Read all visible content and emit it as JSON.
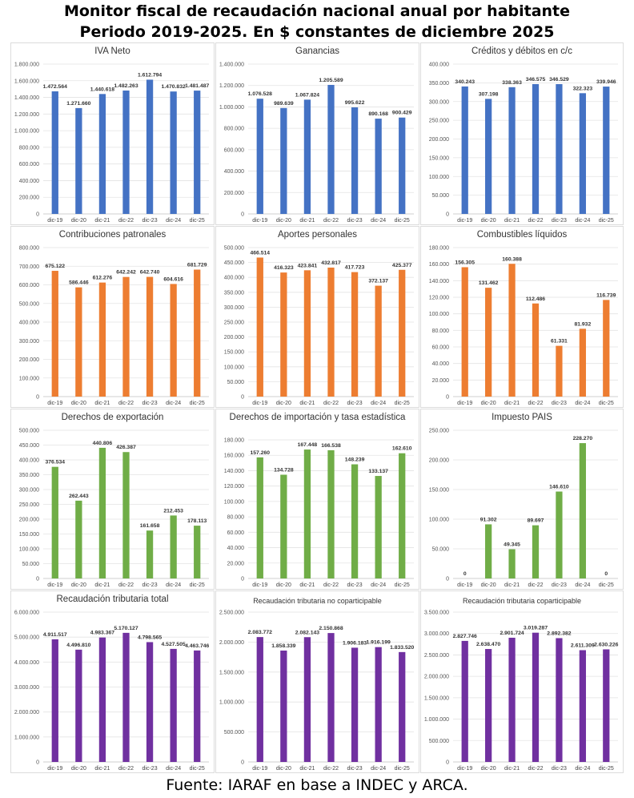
{
  "header": {
    "title_line1": "Monitor fiscal de recaudación nacional anual por habitante",
    "title_line2": "Periodo 2019-2025. En $ constantes de diciembre 2025"
  },
  "footer": {
    "source": "Fuente: IARAF en base a INDEC y ARCA."
  },
  "colors": {
    "blue": "#4472C4",
    "orange": "#ED7D31",
    "green": "#70AD47",
    "purple": "#7030A0"
  },
  "chart_data": [
    {
      "id": "iva",
      "type": "bar",
      "title": "IVA Neto",
      "color": "blue",
      "categories": [
        "dic-19",
        "dic-20",
        "dic-21",
        "dic-22",
        "dic-23",
        "dic-24",
        "dic-25"
      ],
      "values": [
        1472564,
        1271660,
        1440618,
        1482263,
        1612794,
        1470832,
        1481487
      ],
      "labels": [
        "1.472.564",
        "1.271.660",
        "1.440.618",
        "1.482.263",
        "1.612.794",
        "1.470.832",
        "1.481.487"
      ],
      "ylim": [
        0,
        1800000
      ],
      "yticks": [
        "0",
        "200.000",
        "400.000",
        "600.000",
        "800.000",
        "1.000.000",
        "1.200.000",
        "1.400.000",
        "1.600.000",
        "1.800.000"
      ]
    },
    {
      "id": "ganancias",
      "type": "bar",
      "title": "Ganancias",
      "color": "blue",
      "categories": [
        "dic-19",
        "dic-20",
        "dic-21",
        "dic-22",
        "dic-23",
        "dic-24",
        "dic-25"
      ],
      "values": [
        1076528,
        989639,
        1067824,
        1205589,
        995622,
        890168,
        900429
      ],
      "labels": [
        "1.076.528",
        "989.639",
        "1.067.824",
        "1.205.589",
        "995.622",
        "890.168",
        "900.429"
      ],
      "ylim": [
        0,
        1400000
      ],
      "yticks": [
        "0",
        "200.000",
        "400.000",
        "600.000",
        "800.000",
        "1.000.000",
        "1.200.000",
        "1.400.000"
      ]
    },
    {
      "id": "creditos",
      "type": "bar",
      "title": "Créditos y débitos en c/c",
      "color": "blue",
      "categories": [
        "dic-19",
        "dic-20",
        "dic-21",
        "dic-22",
        "dic-23",
        "dic-24",
        "dic-25"
      ],
      "values": [
        340243,
        307198,
        338363,
        346575,
        346529,
        322323,
        339946
      ],
      "labels": [
        "340.243",
        "307.198",
        "338.363",
        "346.575",
        "346.529",
        "322.323",
        "339.946"
      ],
      "ylim": [
        0,
        400000
      ],
      "yticks": [
        "0",
        "50.000",
        "100.000",
        "150.000",
        "200.000",
        "250.000",
        "300.000",
        "350.000",
        "400.000"
      ]
    },
    {
      "id": "contribuciones",
      "type": "bar",
      "title": "Contribuciones patronales",
      "color": "orange",
      "categories": [
        "dic-19",
        "dic-20",
        "dic-21",
        "dic-22",
        "dic-23",
        "dic-24",
        "dic-25"
      ],
      "values": [
        675122,
        586446,
        612276,
        642242,
        642740,
        604616,
        681729
      ],
      "labels": [
        "675.122",
        "586.446",
        "612.276",
        "642.242",
        "642.740",
        "604.616",
        "681.729"
      ],
      "ylim": [
        0,
        800000
      ],
      "yticks": [
        "0",
        "100.000",
        "200.000",
        "300.000",
        "400.000",
        "500.000",
        "600.000",
        "700.000",
        "800.000"
      ]
    },
    {
      "id": "aportes",
      "type": "bar",
      "title": "Aportes personales",
      "color": "orange",
      "categories": [
        "dic-19",
        "dic-20",
        "dic-21",
        "dic-22",
        "dic-23",
        "dic-24",
        "dic-25"
      ],
      "values": [
        466514,
        416323,
        423841,
        432817,
        417723,
        372137,
        425377
      ],
      "labels": [
        "466.514",
        "416.323",
        "423.841",
        "432.817",
        "417.723",
        "372.137",
        "425.377"
      ],
      "ylim": [
        0,
        500000
      ],
      "yticks": [
        "0",
        "50.000",
        "100.000",
        "150.000",
        "200.000",
        "250.000",
        "300.000",
        "350.000",
        "400.000",
        "450.000",
        "500.000"
      ]
    },
    {
      "id": "combustibles",
      "type": "bar",
      "title": "Combustibles líquidos",
      "color": "orange",
      "categories": [
        "dic-19",
        "dic-20",
        "dic-21",
        "dic-22",
        "dic-23",
        "dic-24",
        "dic-25"
      ],
      "values": [
        156305,
        131462,
        160388,
        112486,
        61331,
        81932,
        116739
      ],
      "labels": [
        "156.305",
        "131.462",
        "160.388",
        "112.486",
        "61.331",
        "81.932",
        "116.739"
      ],
      "ylim": [
        0,
        180000
      ],
      "yticks": [
        "0",
        "20.000",
        "40.000",
        "60.000",
        "80.000",
        "100.000",
        "120.000",
        "140.000",
        "160.000",
        "180.000"
      ]
    },
    {
      "id": "exportacion",
      "type": "bar",
      "title": "Derechos de exportación",
      "color": "green",
      "categories": [
        "dic-19",
        "dic-20",
        "dic-21",
        "dic-22",
        "dic-23",
        "dic-24",
        "dic-25"
      ],
      "values": [
        376534,
        262443,
        440806,
        426387,
        161658,
        212453,
        178113
      ],
      "labels": [
        "376.534",
        "262.443",
        "440.806",
        "426.387",
        "161.658",
        "212.453",
        "178.113"
      ],
      "ylim": [
        0,
        500000
      ],
      "yticks": [
        "0",
        "50.000",
        "100.000",
        "150.000",
        "200.000",
        "250.000",
        "300.000",
        "350.000",
        "400.000",
        "450.000",
        "500.000"
      ]
    },
    {
      "id": "importacion",
      "type": "bar",
      "title": "Derechos de importación y tasa estadística",
      "color": "green",
      "categories": [
        "dic-19",
        "dic-20",
        "dic-21",
        "dic-22",
        "dic-23",
        "dic-24",
        "dic-25"
      ],
      "values": [
        157260,
        134728,
        167448,
        166538,
        148239,
        133137,
        162610
      ],
      "labels": [
        "157.260",
        "134.728",
        "167.448",
        "166.538",
        "148.239",
        "133.137",
        "162.610"
      ],
      "ylim": [
        0,
        180000
      ],
      "yticks": [
        "0",
        "20.000",
        "40.000",
        "60.000",
        "80.000",
        "100.000",
        "120.000",
        "140.000",
        "160.000",
        "180.000"
      ]
    },
    {
      "id": "pais",
      "type": "bar",
      "title": "Impuesto PAIS",
      "color": "green",
      "categories": [
        "dic-19",
        "dic-20",
        "dic-21",
        "dic-22",
        "dic-23",
        "dic-24",
        "dic-25"
      ],
      "values": [
        0,
        91302,
        49345,
        89697,
        146610,
        228270,
        0
      ],
      "labels": [
        "0",
        "91.302",
        "49.345",
        "89.697",
        "146.610",
        "228.270",
        "0"
      ],
      "ylim": [
        0,
        250000
      ],
      "yticks": [
        "0",
        "50.000",
        "100.000",
        "150.000",
        "200.000",
        "250.000"
      ]
    },
    {
      "id": "total",
      "type": "bar",
      "title": "Recaudación tributaria total",
      "color": "purple",
      "categories": [
        "dic-19",
        "dic-20",
        "dic-21",
        "dic-22",
        "dic-23",
        "dic-24",
        "dic-25"
      ],
      "values": [
        4911517,
        4496810,
        4983367,
        5170127,
        4798565,
        4527505,
        4463746
      ],
      "labels": [
        "4.911.517",
        "4.496.810",
        "4.983.367",
        "5.170.127",
        "4.798.565",
        "4.527.505",
        "4.463.746"
      ],
      "ylim": [
        0,
        6000000
      ],
      "yticks": [
        "0",
        "1.000.000",
        "2.000.000",
        "3.000.000",
        "4.000.000",
        "5.000.000",
        "6.000.000"
      ]
    },
    {
      "id": "nocopart",
      "type": "bar",
      "title": "Recaudación tributaria no coparticipable",
      "color": "purple",
      "categories": [
        "dic-19",
        "dic-20",
        "dic-21",
        "dic-22",
        "dic-23",
        "dic-24",
        "dic-25"
      ],
      "values": [
        2083772,
        1858339,
        2082143,
        2150868,
        1906183,
        1916199,
        1833520
      ],
      "labels": [
        "2.083.772",
        "1.858.339",
        "2.082.143",
        "2.150.868",
        "1.906.183",
        "1.916.199",
        "1.833.520"
      ],
      "ylim": [
        0,
        2500000
      ],
      "yticks": [
        "0",
        "500.000",
        "1.000.000",
        "1.500.000",
        "2.000.000",
        "2.500.000"
      ]
    },
    {
      "id": "copart",
      "type": "bar",
      "title": "Recaudación tributaria coparticipable",
      "color": "purple",
      "categories": [
        "dic-19",
        "dic-20",
        "dic-21",
        "dic-22",
        "dic-23",
        "dic-24",
        "dic-25"
      ],
      "values": [
        2827746,
        2638470,
        2901724,
        3019287,
        2892382,
        2611309,
        2630226
      ],
      "labels": [
        "2.827.746",
        "2.638.470",
        "2.901.724",
        "3.019.287",
        "2.892.382",
        "2.611.309",
        "2.630.226"
      ],
      "ylim": [
        0,
        3500000
      ],
      "yticks": [
        "0",
        "500.000",
        "1.000.000",
        "1.500.000",
        "2.000.000",
        "2.500.000",
        "3.000.000",
        "3.500.000"
      ]
    }
  ]
}
